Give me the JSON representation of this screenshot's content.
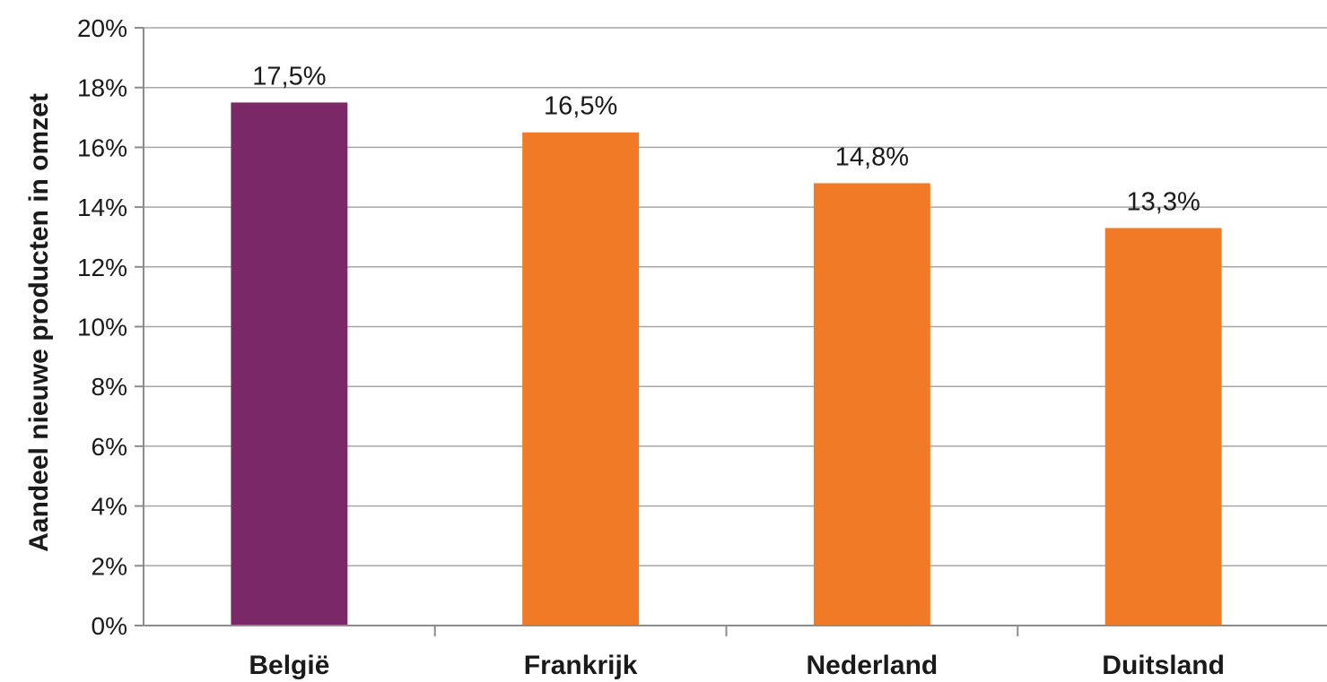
{
  "chart_data": {
    "type": "bar",
    "categories": [
      "België",
      "Frankrijk",
      "Nederland",
      "Duitsland"
    ],
    "values": [
      17.5,
      16.5,
      14.8,
      13.3
    ],
    "data_labels": [
      "17,5%",
      "16,5%",
      "14,8%",
      "13,3%"
    ],
    "colors": [
      "#7b2866",
      "#f07a26",
      "#f07a26",
      "#f07a26"
    ],
    "ylabel": "Aandeel nieuwe producten in omzet",
    "ylim": [
      0,
      20
    ],
    "yticks": [
      0,
      2,
      4,
      6,
      8,
      10,
      12,
      14,
      16,
      18,
      20
    ],
    "ytick_labels": [
      "0%",
      "2%",
      "4%",
      "6%",
      "8%",
      "10%",
      "12%",
      "14%",
      "16%",
      "18%",
      "20%"
    ],
    "grid": true,
    "legend": "none"
  }
}
